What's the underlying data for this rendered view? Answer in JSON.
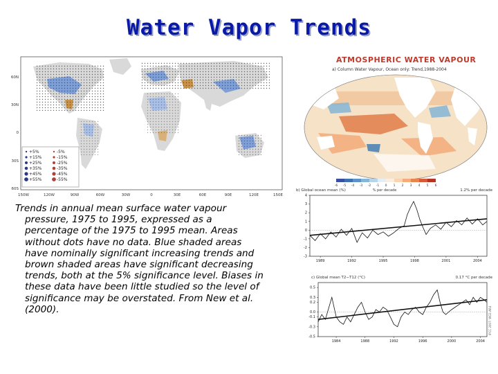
{
  "slide": {
    "title": "Water Vapor Trends",
    "caption": "Trends in annual mean surface water vapour pressure, 1975 to 1995, expressed as a percentage of the 1975 to 1995 mean. Areas without dots have no data. Blue shaded areas have nominally significant increasing trends and brown shaded areas have significant decreasing trends, both at the 5% significance level. Biases in these data have been little studied so the level of significance may be overstated. From New et al. (2000)."
  },
  "left_map": {
    "lat_labels": [
      "60N",
      "30N",
      "0",
      "30S",
      "60S"
    ],
    "lon_labels": [
      "150W",
      "120W",
      "90W",
      "60W",
      "30W",
      "0",
      "30E",
      "60E",
      "90E",
      "120E",
      "150E"
    ],
    "legend_increase": [
      "+5%",
      "+15%",
      "+25%",
      "+35%",
      "+45%",
      "+55%"
    ],
    "legend_decrease": [
      "-5%",
      "-15%",
      "-25%",
      "-35%",
      "-45%",
      "-55%"
    ],
    "colors": {
      "ocean": "#ffffff",
      "land": "#d9d9d9",
      "increase": "#7f9fd6",
      "decrease": "#c8924c",
      "dots": "#2a3a8a"
    }
  },
  "right_panel": {
    "header": "ATMOSPHERIC WATER VAPOUR",
    "map_title": "a) Column Water Vapour, Ocean only: Trend,1988-2004",
    "colorbar_label": "% per decade",
    "colorbar_ticks": [
      "-6",
      "-5",
      "-4",
      "-3",
      "-2",
      "-1",
      "0",
      "1",
      "2",
      "3",
      "4",
      "5",
      "6"
    ],
    "chart_b_title": "b) Global ocean mean (%)",
    "chart_b_trend": "1.2% per decade",
    "chart_c_title": "c) Global mean T2−T12 (°C)",
    "chart_c_trend": "0.17 °C per decade",
    "credit": "IPCC 2007: WG1-AR4"
  },
  "chart_data": [
    {
      "type": "line",
      "title": "b) Global ocean mean (%)",
      "annotation": "1.2% per decade",
      "x_ticks": [
        "1989",
        "1992",
        "1995",
        "1998",
        "2001",
        "2004"
      ],
      "y_ticks": [
        "4",
        "3",
        "2",
        "1",
        "0",
        "-1",
        "-2",
        "-3"
      ],
      "ylim": [
        -3,
        4
      ],
      "xlim": [
        1988,
        2004.9
      ],
      "series": [
        {
          "name": "monthly anomaly",
          "x": [
            1988.0,
            1988.5,
            1989.0,
            1989.5,
            1990.0,
            1990.5,
            1991.0,
            1991.5,
            1992.0,
            1992.5,
            1993.0,
            1993.5,
            1994.0,
            1994.5,
            1995.0,
            1995.5,
            1996.0,
            1996.5,
            1997.0,
            1997.3,
            1997.6,
            1997.9,
            1998.2,
            1998.5,
            1998.8,
            1999.1,
            1999.5,
            2000.0,
            2000.5,
            2001.0,
            2001.5,
            2002.0,
            2002.5,
            2003.0,
            2003.5,
            2004.0,
            2004.5,
            2004.9
          ],
          "values": [
            -0.6,
            -1.2,
            -0.4,
            -1.0,
            -0.2,
            -0.8,
            0.1,
            -0.6,
            0.2,
            -1.4,
            -0.3,
            -0.9,
            0.0,
            -0.5,
            -0.2,
            -0.7,
            -0.3,
            0.2,
            0.5,
            1.8,
            2.6,
            3.3,
            2.4,
            1.2,
            0.3,
            -0.5,
            0.2,
            0.6,
            0.1,
            0.9,
            0.4,
            1.1,
            0.6,
            1.4,
            0.7,
            1.3,
            0.6,
            1.0
          ]
        },
        {
          "name": "trend",
          "x": [
            1988.0,
            2004.9
          ],
          "values": [
            -0.6,
            1.3
          ]
        }
      ]
    },
    {
      "type": "line",
      "title": "c) Global mean T2−T12 (°C)",
      "annotation": "0.17 °C per decade",
      "x_ticks": [
        "1984",
        "1988",
        "1992",
        "1996",
        "2000",
        "2004"
      ],
      "y_ticks": [
        "0.5",
        "0.3",
        "0.2",
        "0.0",
        "-0.1",
        "-0.3",
        "-0.5"
      ],
      "ylim": [
        -0.5,
        0.6
      ],
      "xlim": [
        1981.5,
        2004.9
      ],
      "series": [
        {
          "name": "monthly anomaly",
          "x": [
            1981.5,
            1982.0,
            1982.5,
            1983.0,
            1983.4,
            1984.0,
            1984.5,
            1985.0,
            1985.5,
            1986.0,
            1986.5,
            1987.0,
            1987.5,
            1988.0,
            1988.5,
            1989.0,
            1989.5,
            1990.0,
            1990.5,
            1991.0,
            1991.5,
            1992.0,
            1992.5,
            1993.0,
            1993.5,
            1994.0,
            1994.5,
            1995.0,
            1995.5,
            1996.0,
            1996.5,
            1997.0,
            1997.5,
            1998.0,
            1998.4,
            1998.8,
            1999.2,
            1999.6,
            2000.0,
            2000.5,
            2001.0,
            2001.5,
            2002.0,
            2002.5,
            2003.0,
            2003.5,
            2004.0,
            2004.5,
            2004.9
          ],
          "values": [
            -0.2,
            -0.05,
            -0.15,
            0.1,
            0.3,
            -0.1,
            -0.2,
            -0.25,
            -0.1,
            -0.2,
            -0.05,
            0.1,
            0.2,
            0.0,
            -0.15,
            -0.1,
            0.05,
            0.0,
            0.1,
            0.05,
            -0.1,
            -0.25,
            -0.3,
            -0.1,
            0.0,
            -0.05,
            0.05,
            0.1,
            0.0,
            -0.05,
            0.1,
            0.2,
            0.35,
            0.45,
            0.2,
            0.0,
            -0.05,
            0.0,
            0.05,
            0.1,
            0.15,
            0.2,
            0.25,
            0.15,
            0.3,
            0.2,
            0.3,
            0.25,
            0.2
          ]
        },
        {
          "name": "trend",
          "x": [
            1981.5,
            2004.9
          ],
          "values": [
            -0.15,
            0.25
          ]
        }
      ]
    }
  ]
}
